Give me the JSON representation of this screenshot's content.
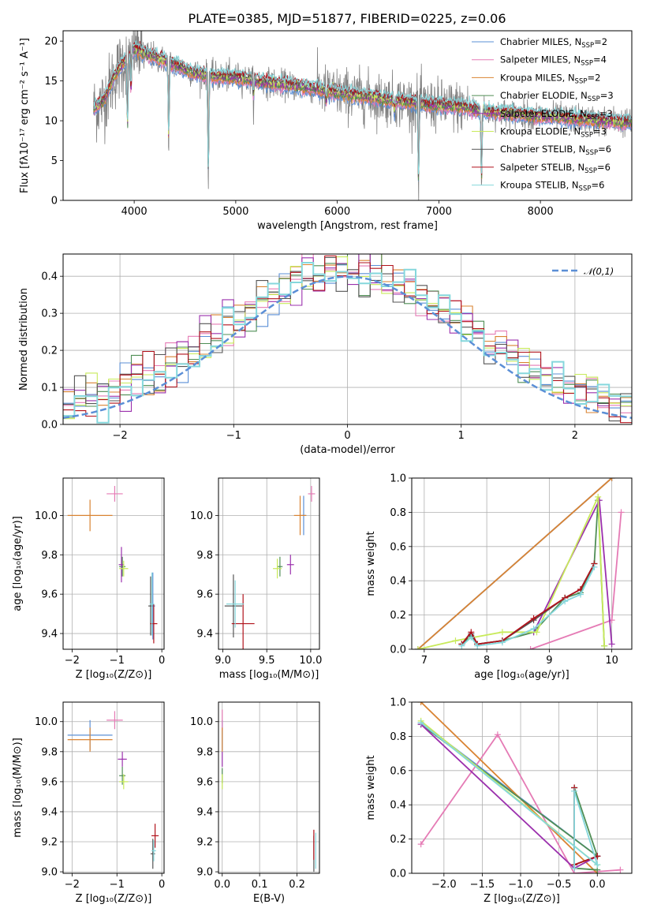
{
  "figure": {
    "title": "PLATE=0385, MJD=51877, FIBERID=0225, z=0.06"
  },
  "models": [
    {
      "name": "Chabrier MILES",
      "nssp": "2",
      "color": "#5b8fd6"
    },
    {
      "name": "Salpeter MILES",
      "nssp": "4",
      "color": "#e57bb5"
    },
    {
      "name": "Kroupa MILES",
      "nssp": "2",
      "color": "#d98332"
    },
    {
      "name": "Chabrier ELODIE",
      "nssp": "3",
      "color": "#4f8e55"
    },
    {
      "name": "Salpeter ELODIE",
      "nssp": "3",
      "color": "#9b30ad"
    },
    {
      "name": "Kroupa ELODIE",
      "nssp": "3",
      "color": "#c8ea5a"
    },
    {
      "name": "Chabrier STELIB",
      "nssp": "6",
      "color": "#555555"
    },
    {
      "name": "Salpeter STELIB",
      "nssp": "6",
      "color": "#b1121b"
    },
    {
      "name": "Kroupa STELIB",
      "nssp": "6",
      "color": "#85d7dc"
    }
  ],
  "legend_ssp_prefix": "N",
  "legend_ssp_sub": "SSP",
  "chart_data": [
    {
      "id": "spectrum",
      "type": "line",
      "xlabel": "wavelength [Angstrom, rest frame]",
      "ylabel": "Flux [fλ10⁻¹⁷ erg cm⁻² s⁻¹ A⁻¹]",
      "xlim": [
        3300,
        8900
      ],
      "ylim": [
        0,
        21.3
      ],
      "xticks": [
        4000,
        5000,
        6000,
        7000,
        8000
      ],
      "yticks": [
        0,
        5,
        10,
        15,
        20
      ],
      "data_range": [
        3600,
        8900
      ],
      "continuum": {
        "x": [
          3600,
          3700,
          3800,
          3900,
          4000,
          4100,
          4200,
          4400,
          4600,
          4800,
          5000,
          5200,
          5500,
          5800,
          6000,
          6300,
          6600,
          6900,
          7200,
          7400,
          7600,
          7800,
          8000,
          8300,
          8600,
          8900
        ],
        "y": [
          11.5,
          12.5,
          15.5,
          17.5,
          19.0,
          18.5,
          18.0,
          17.0,
          16.0,
          15.5,
          15.5,
          15.0,
          14.5,
          14.0,
          13.5,
          13.0,
          12.5,
          12.0,
          11.8,
          11.3,
          11.0,
          10.8,
          10.6,
          10.3,
          10.0,
          9.8
        ]
      },
      "absorption_features": [
        {
          "x": 3934,
          "depth": 11.0
        },
        {
          "x": 3969,
          "depth": 6.0
        },
        {
          "x": 4340,
          "depth": 12.0
        },
        {
          "x": 4730,
          "depth": 15.5
        },
        {
          "x": 5175,
          "depth": 2.5
        },
        {
          "x": 5890,
          "depth": 1.8
        },
        {
          "x": 6563,
          "depth": 1.5
        },
        {
          "x": 6800,
          "depth": 12.5
        },
        {
          "x": 7420,
          "depth": 11.0
        }
      ]
    },
    {
      "id": "residuals",
      "type": "step",
      "xlabel": "(data-model)/error",
      "ylabel": "Normed distribution",
      "xlim": [
        -2.5,
        2.5
      ],
      "ylim": [
        0,
        0.46
      ],
      "xticks": [
        -2,
        -1,
        0,
        1,
        2
      ],
      "yticks": [
        0.0,
        0.1,
        0.2,
        0.3,
        0.4
      ],
      "bin_width": 0.1,
      "reference": {
        "label": "𝒩(0,1)",
        "mu": 0,
        "sigma": 1,
        "color": "#5b8fd6"
      }
    },
    {
      "id": "age_vs_Z",
      "type": "errorbar",
      "xlabel": "Z [log₁₀(Z/Z⊙)]",
      "ylabel": "age  [log₁₀(age/yr)]",
      "xlim": [
        -2.2,
        0.05
      ],
      "ylim": [
        9.32,
        10.19
      ],
      "xticks": [
        -2,
        -1,
        0
      ],
      "yticks": [
        9.4,
        9.6,
        9.8,
        10.0
      ],
      "points": [
        {
          "model": 0,
          "x": -0.2,
          "y": 9.54,
          "xerr": 0.05,
          "yerr": 0.17
        },
        {
          "model": 1,
          "x": -1.05,
          "y": 10.11,
          "xerr": 0.18,
          "yerr": 0.04
        },
        {
          "model": 2,
          "x": -1.6,
          "y": 10.0,
          "xerr": 0.5,
          "yerr": 0.08
        },
        {
          "model": 3,
          "x": -0.88,
          "y": 9.74,
          "xerr": 0.07,
          "yerr": 0.05
        },
        {
          "model": 4,
          "x": -0.9,
          "y": 9.75,
          "xerr": 0.06,
          "yerr": 0.09
        },
        {
          "model": 5,
          "x": -0.85,
          "y": 9.73,
          "xerr": 0.1,
          "yerr": 0.04
        },
        {
          "model": 6,
          "x": -0.25,
          "y": 9.54,
          "xerr": 0.05,
          "yerr": 0.15
        },
        {
          "model": 7,
          "x": -0.18,
          "y": 9.45,
          "xerr": 0.08,
          "yerr": 0.1
        },
        {
          "model": 8,
          "x": -0.22,
          "y": 9.55,
          "xerr": 0.05,
          "yerr": 0.16
        }
      ]
    },
    {
      "id": "age_vs_mass",
      "type": "errorbar",
      "xlabel": "mass [log₁₀(M/M⊙)]",
      "ylabel": "",
      "xlim": [
        8.95,
        10.1
      ],
      "ylim": [
        9.32,
        10.19
      ],
      "xticks": [
        9.0,
        9.5,
        10.0
      ],
      "yticks": [
        9.4,
        9.6,
        9.8,
        10.0
      ],
      "points": [
        {
          "model": 0,
          "x": 9.92,
          "y": 10.0,
          "xerr": 0.03,
          "yerr": 0.1
        },
        {
          "model": 1,
          "x": 10.01,
          "y": 10.11,
          "xerr": 0.04,
          "yerr": 0.04
        },
        {
          "model": 2,
          "x": 9.88,
          "y": 10.0,
          "xerr": 0.07,
          "yerr": 0.1
        },
        {
          "model": 3,
          "x": 9.65,
          "y": 9.74,
          "xerr": 0.03,
          "yerr": 0.05
        },
        {
          "model": 4,
          "x": 9.77,
          "y": 9.75,
          "xerr": 0.04,
          "yerr": 0.05
        },
        {
          "model": 5,
          "x": 9.62,
          "y": 9.73,
          "xerr": 0.05,
          "yerr": 0.05
        },
        {
          "model": 6,
          "x": 9.12,
          "y": 9.54,
          "xerr": 0.1,
          "yerr": 0.16
        },
        {
          "model": 7,
          "x": 9.23,
          "y": 9.45,
          "xerr": 0.13,
          "yerr": 0.15
        },
        {
          "model": 8,
          "x": 9.14,
          "y": 9.55,
          "xerr": 0.1,
          "yerr": 0.12
        }
      ]
    },
    {
      "id": "massweight_vs_age",
      "type": "line",
      "xlabel": "age  [log₁₀(age/yr)]",
      "ylabel": "mass weight",
      "xlim": [
        6.8,
        10.32
      ],
      "ylim": [
        0,
        1.0
      ],
      "xticks": [
        7,
        8,
        9,
        10
      ],
      "yticks": [
        0.0,
        0.2,
        0.4,
        0.6,
        0.8,
        1.0
      ],
      "series": [
        {
          "model": 0,
          "x": [
            6.9,
            10.0
          ],
          "y": [
            0.0,
            1.0
          ]
        },
        {
          "model": 1,
          "x": [
            8.7,
            10.0,
            10.15
          ],
          "y": [
            0.0,
            0.17,
            0.8
          ]
        },
        {
          "model": 2,
          "x": [
            6.9,
            10.0
          ],
          "y": [
            0.0,
            1.0
          ]
        },
        {
          "model": 3,
          "x": [
            7.6,
            7.75,
            7.85,
            8.25,
            8.75,
            9.25,
            9.5,
            9.72,
            9.78,
            9.88
          ],
          "y": [
            0.03,
            0.08,
            0.03,
            0.05,
            0.1,
            0.3,
            0.33,
            0.5,
            0.87,
            0.02
          ]
        },
        {
          "model": 4,
          "x": [
            8.75,
            9.8,
            10.0
          ],
          "y": [
            0.1,
            0.87,
            0.03
          ]
        },
        {
          "model": 5,
          "x": [
            6.9,
            7.5,
            8.25,
            8.8,
            9.78,
            9.88
          ],
          "y": [
            0.0,
            0.05,
            0.1,
            0.1,
            0.89,
            0.02
          ]
        },
        {
          "model": 6,
          "x": [
            7.6,
            7.75,
            7.85,
            8.25,
            8.75,
            9.25,
            9.5,
            9.72
          ],
          "y": [
            0.03,
            0.09,
            0.03,
            0.05,
            0.17,
            0.3,
            0.35,
            0.5
          ]
        },
        {
          "model": 7,
          "x": [
            7.6,
            7.75,
            7.85,
            8.25,
            8.75,
            9.25,
            9.5,
            9.72
          ],
          "y": [
            0.03,
            0.1,
            0.03,
            0.05,
            0.18,
            0.3,
            0.35,
            0.5
          ]
        },
        {
          "model": 8,
          "x": [
            7.6,
            7.75,
            7.85,
            8.25,
            8.75,
            9.25,
            9.5,
            9.72
          ],
          "y": [
            0.02,
            0.07,
            0.02,
            0.04,
            0.12,
            0.28,
            0.32,
            0.48
          ]
        }
      ]
    },
    {
      "id": "mass_vs_Z",
      "type": "errorbar",
      "xlabel": "Z [log₁₀(Z/Z⊙)]",
      "ylabel": "mass [log₁₀(M/M⊙)]",
      "xlim": [
        -2.2,
        0.05
      ],
      "ylim": [
        8.99,
        10.13
      ],
      "xticks": [
        -2,
        -1,
        0
      ],
      "yticks": [
        9.0,
        9.2,
        9.4,
        9.6,
        9.8,
        10.0
      ],
      "points": [
        {
          "model": 0,
          "x": -1.6,
          "y": 9.91,
          "xerr": 0.5,
          "yerr": 0.1
        },
        {
          "model": 1,
          "x": -1.05,
          "y": 10.01,
          "xerr": 0.18,
          "yerr": 0.06
        },
        {
          "model": 2,
          "x": -1.6,
          "y": 9.88,
          "xerr": 0.5,
          "yerr": 0.08
        },
        {
          "model": 3,
          "x": -0.88,
          "y": 9.64,
          "xerr": 0.07,
          "yerr": 0.06
        },
        {
          "model": 4,
          "x": -0.88,
          "y": 9.75,
          "xerr": 0.1,
          "yerr": 0.05
        },
        {
          "model": 5,
          "x": -0.85,
          "y": 9.6,
          "xerr": 0.1,
          "yerr": 0.05
        },
        {
          "model": 6,
          "x": -0.2,
          "y": 9.12,
          "xerr": 0.05,
          "yerr": 0.1
        },
        {
          "model": 7,
          "x": -0.15,
          "y": 9.24,
          "xerr": 0.08,
          "yerr": 0.08
        },
        {
          "model": 8,
          "x": -0.18,
          "y": 9.14,
          "xerr": 0.05,
          "yerr": 0.07
        }
      ]
    },
    {
      "id": "mass_vs_ebv",
      "type": "errorbar",
      "xlabel": "E(B-V)",
      "ylabel": "",
      "xlim": [
        -0.01,
        0.26
      ],
      "ylim": [
        8.99,
        10.13
      ],
      "xticks": [
        0.0,
        0.1,
        0.2
      ],
      "yticks": [
        9.0,
        9.2,
        9.4,
        9.6,
        9.8,
        10.0
      ],
      "points": [
        {
          "model": 0,
          "x": 0.0,
          "y": 9.91,
          "xerr": 0.0,
          "yerr": 0.1
        },
        {
          "model": 1,
          "x": 0.0,
          "y": 10.01,
          "xerr": 0.0,
          "yerr": 0.07
        },
        {
          "model": 2,
          "x": 0.0,
          "y": 9.88,
          "xerr": 0.0,
          "yerr": 0.08
        },
        {
          "model": 3,
          "x": 0.0,
          "y": 9.64,
          "xerr": 0.0,
          "yerr": 0.05
        },
        {
          "model": 4,
          "x": 0.0,
          "y": 9.75,
          "xerr": 0.0,
          "yerr": 0.05
        },
        {
          "model": 5,
          "x": 0.0,
          "y": 9.6,
          "xerr": 0.0,
          "yerr": 0.05
        },
        {
          "model": 6,
          "x": 0.245,
          "y": 9.12,
          "xerr": 0.0,
          "yerr": 0.12
        },
        {
          "model": 7,
          "x": 0.245,
          "y": 9.18,
          "xerr": 0.0,
          "yerr": 0.1
        },
        {
          "model": 8,
          "x": 0.25,
          "y": 9.14,
          "xerr": 0.0,
          "yerr": 0.12
        }
      ]
    },
    {
      "id": "massweight_vs_Z",
      "type": "line",
      "xlabel": "Z [log₁₀(Z/Z⊙)]",
      "ylabel": "mass weight",
      "xlim": [
        -2.42,
        0.45
      ],
      "ylim": [
        0,
        1.0
      ],
      "xticks": [
        -2.0,
        -1.5,
        -1.0,
        -0.5,
        0.0
      ],
      "yticks": [
        0.0,
        0.2,
        0.4,
        0.6,
        0.8,
        1.0
      ],
      "series": [
        {
          "model": 0,
          "x": [
            -2.3,
            0.0
          ],
          "y": [
            0.88,
            0.1
          ]
        },
        {
          "model": 1,
          "x": [
            -2.3,
            -1.3,
            -0.3,
            0.3
          ],
          "y": [
            0.17,
            0.81,
            0.0,
            0.02
          ]
        },
        {
          "model": 2,
          "x": [
            -2.3,
            0.0
          ],
          "y": [
            1.0,
            0.0
          ]
        },
        {
          "model": 3,
          "x": [
            -2.3,
            0.0,
            -0.3,
            -0.3,
            0.0
          ],
          "y": [
            0.87,
            0.1,
            0.5,
            0.03,
            0.02
          ]
        },
        {
          "model": 4,
          "x": [
            -2.3,
            -0.3,
            0.0
          ],
          "y": [
            0.87,
            0.03,
            0.1
          ]
        },
        {
          "model": 5,
          "x": [
            -2.3,
            0.0
          ],
          "y": [
            0.89,
            0.05
          ]
        },
        {
          "model": 6,
          "x": [
            -0.3,
            -0.3,
            0.0
          ],
          "y": [
            0.5,
            0.05,
            0.1
          ]
        },
        {
          "model": 7,
          "x": [
            -0.3,
            -0.3,
            0.0
          ],
          "y": [
            0.5,
            0.05,
            0.1
          ]
        },
        {
          "model": 8,
          "x": [
            -2.3,
            0.0,
            -0.3,
            -0.3
          ],
          "y": [
            0.88,
            0.05,
            0.48,
            0.03
          ]
        }
      ]
    }
  ]
}
